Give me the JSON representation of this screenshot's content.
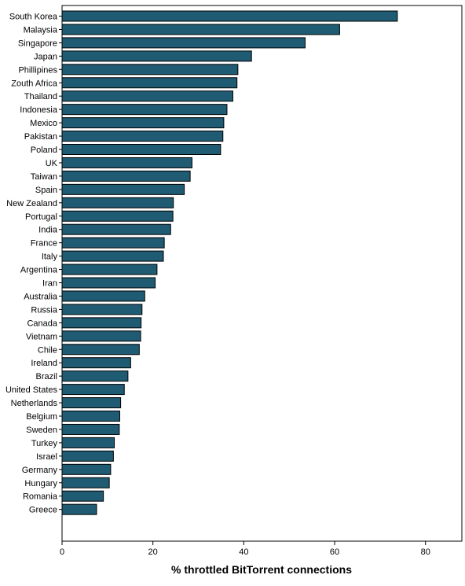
{
  "chart_data": {
    "type": "bar",
    "orientation": "horizontal",
    "title": "",
    "xlabel": "% throttled BitTorrent connections",
    "ylabel": "",
    "xlim": [
      0,
      88
    ],
    "xticks": [
      0,
      20,
      40,
      60,
      80
    ],
    "grid": false,
    "bar_color": "#1f5b73",
    "categories": [
      "South Korea",
      "Malaysia",
      "Singapore",
      "Japan",
      "Phillipines",
      "Zouth Africa",
      "Thailand",
      "Indonesia",
      "Mexico",
      "Pakistan",
      "Poland",
      "UK",
      "Taiwan",
      "Spain",
      "New Zealand",
      "Portugal",
      "India",
      "France",
      "Italy",
      "Argentina",
      "Iran",
      "Australia",
      "Russia",
      "Canada",
      "Vietnam",
      "Chile",
      "Ireland",
      "Brazil",
      "United States",
      "Netherlands",
      "Belgium",
      "Sweden",
      "Turkey",
      "Israel",
      "Germany",
      "Hungary",
      "Romania",
      "Greece"
    ],
    "values": [
      73.8,
      61.1,
      53.5,
      41.7,
      38.7,
      38.5,
      37.6,
      36.3,
      35.6,
      35.4,
      34.9,
      28.6,
      28.2,
      26.9,
      24.5,
      24.4,
      23.9,
      22.5,
      22.3,
      20.9,
      20.5,
      18.2,
      17.6,
      17.4,
      17.3,
      17.0,
      15.1,
      14.5,
      13.7,
      12.9,
      12.7,
      12.6,
      11.5,
      11.3,
      10.7,
      10.4,
      9.1,
      7.6
    ]
  }
}
